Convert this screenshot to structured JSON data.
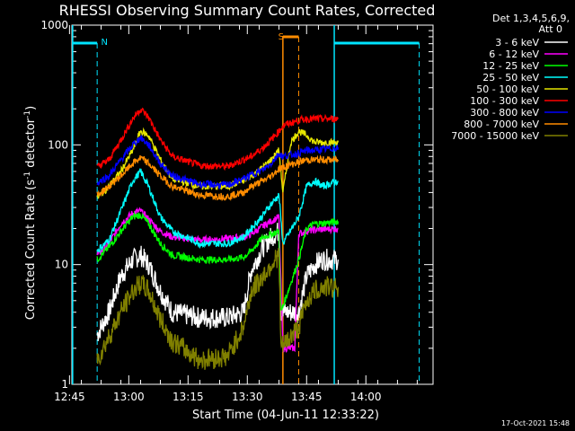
{
  "chart_data": {
    "type": "line",
    "title": "RHESSI Observing Summary Count Rates, Corrected",
    "xlabel": "Start Time (04-Jun-11 12:33:22)",
    "ylabel_main": "Corrected Count Rate (s",
    "ylabel_exp1": "-1",
    "ylabel_mid": " detector",
    "ylabel_exp2": "-1",
    "ylabel_end": ")",
    "y_scale": "log",
    "ylim": [
      1,
      1000
    ],
    "xlim_minutes": [
      12.6,
      104.0
    ],
    "x_tick_labels": [
      "12:45",
      "13:00",
      "13:15",
      "13:30",
      "13:45",
      "14:00"
    ],
    "x_tick_minutes": [
      12,
      27,
      42,
      57,
      72,
      87
    ],
    "y_tick_labels": [
      "1",
      "10",
      "100",
      "1000"
    ],
    "y_tick_values": [
      1,
      10,
      100,
      1000
    ],
    "legend_header1": "Det 1,3,4,5,6,9,",
    "legend_header2": "Att 0",
    "legend_placement": "top-right",
    "timestamp": "17-Oct-2021 15:48",
    "flags": [
      {
        "label": "N",
        "color": "#00e5ff",
        "start": 19.0,
        "end": 71.0,
        "style": "dashed"
      },
      {
        "label": "S",
        "color": "#ff8c00",
        "start": 66.0,
        "end": 70.0,
        "style": "dashed"
      }
    ],
    "series": [
      {
        "name": "3 - 6 keV",
        "color": "#ffffff",
        "points": [
          [
            19,
            2.6
          ],
          [
            22,
            4
          ],
          [
            25,
            8
          ],
          [
            28,
            11
          ],
          [
            30,
            12
          ],
          [
            32,
            10
          ],
          [
            35,
            6
          ],
          [
            38,
            4
          ],
          [
            45,
            3.6
          ],
          [
            52,
            3.6
          ],
          [
            56,
            4
          ],
          [
            58,
            9
          ],
          [
            61,
            14
          ],
          [
            63,
            17
          ],
          [
            65,
            19
          ],
          [
            65.5,
            4
          ],
          [
            70,
            4
          ],
          [
            72,
            8
          ],
          [
            74,
            10
          ],
          [
            76,
            11
          ],
          [
            80,
            11
          ]
        ]
      },
      {
        "name": "6 - 12 keV",
        "color": "#ff00ff",
        "points": [
          [
            19,
            12
          ],
          [
            22,
            15
          ],
          [
            25,
            22
          ],
          [
            28,
            27
          ],
          [
            30,
            28
          ],
          [
            32,
            24
          ],
          [
            35,
            19
          ],
          [
            38,
            17
          ],
          [
            45,
            16
          ],
          [
            52,
            16.5
          ],
          [
            56,
            17
          ],
          [
            58,
            18
          ],
          [
            61,
            21
          ],
          [
            63,
            23
          ],
          [
            65,
            25
          ],
          [
            66,
            2
          ],
          [
            69,
            2
          ],
          [
            70,
            18
          ],
          [
            72,
            19
          ],
          [
            74,
            19.5
          ],
          [
            80,
            20
          ]
        ]
      },
      {
        "name": "12 - 25 keV",
        "color": "#00ff00",
        "points": [
          [
            19,
            11
          ],
          [
            22,
            14
          ],
          [
            25,
            19
          ],
          [
            28,
            25
          ],
          [
            30,
            26
          ],
          [
            32,
            22
          ],
          [
            35,
            15
          ],
          [
            38,
            12
          ],
          [
            45,
            11
          ],
          [
            52,
            11
          ],
          [
            56,
            11.5
          ],
          [
            58,
            13
          ],
          [
            61,
            17
          ],
          [
            63,
            18
          ],
          [
            65,
            19
          ],
          [
            65.5,
            4
          ],
          [
            70,
            11
          ],
          [
            72,
            20
          ],
          [
            74,
            22
          ],
          [
            76,
            22
          ],
          [
            80,
            23
          ]
        ]
      },
      {
        "name": "25 - 50 keV",
        "color": "#00ffff",
        "points": [
          [
            19,
            13
          ],
          [
            22,
            16
          ],
          [
            25,
            28
          ],
          [
            28,
            50
          ],
          [
            30,
            60
          ],
          [
            32,
            45
          ],
          [
            35,
            25
          ],
          [
            38,
            19
          ],
          [
            45,
            15
          ],
          [
            52,
            15
          ],
          [
            56,
            17
          ],
          [
            58,
            20
          ],
          [
            61,
            26
          ],
          [
            63,
            32
          ],
          [
            65,
            38
          ],
          [
            66,
            15
          ],
          [
            70,
            25
          ],
          [
            72,
            45
          ],
          [
            74,
            50
          ],
          [
            76,
            45
          ],
          [
            80,
            50
          ]
        ]
      },
      {
        "name": "50 - 100 keV",
        "color": "#e6e600",
        "points": [
          [
            19,
            36
          ],
          [
            22,
            45
          ],
          [
            25,
            60
          ],
          [
            28,
            90
          ],
          [
            30,
            130
          ],
          [
            32,
            120
          ],
          [
            35,
            75
          ],
          [
            38,
            52
          ],
          [
            45,
            45
          ],
          [
            52,
            45
          ],
          [
            56,
            50
          ],
          [
            58,
            55
          ],
          [
            61,
            65
          ],
          [
            63,
            75
          ],
          [
            65,
            90
          ],
          [
            66,
            40
          ],
          [
            68,
            105
          ],
          [
            70,
            130
          ],
          [
            72,
            120
          ],
          [
            74,
            105
          ],
          [
            80,
            105
          ]
        ]
      },
      {
        "name": "100 - 300 keV",
        "color": "#ff0000",
        "points": [
          [
            19,
            65
          ],
          [
            22,
            75
          ],
          [
            25,
            110
          ],
          [
            28,
            165
          ],
          [
            30,
            200
          ],
          [
            32,
            170
          ],
          [
            35,
            110
          ],
          [
            38,
            80
          ],
          [
            45,
            67
          ],
          [
            52,
            66
          ],
          [
            56,
            75
          ],
          [
            58,
            80
          ],
          [
            61,
            95
          ],
          [
            63,
            110
          ],
          [
            65,
            130
          ],
          [
            66,
            145
          ],
          [
            70,
            160
          ],
          [
            72,
            165
          ],
          [
            74,
            165
          ],
          [
            80,
            165
          ]
        ]
      },
      {
        "name": "300 - 800 keV",
        "color": "#0000ff",
        "points": [
          [
            19,
            48
          ],
          [
            22,
            55
          ],
          [
            25,
            75
          ],
          [
            28,
            100
          ],
          [
            30,
            115
          ],
          [
            32,
            100
          ],
          [
            35,
            70
          ],
          [
            38,
            55
          ],
          [
            45,
            47
          ],
          [
            52,
            46
          ],
          [
            56,
            52
          ],
          [
            58,
            56
          ],
          [
            61,
            62
          ],
          [
            63,
            70
          ],
          [
            65,
            85
          ],
          [
            66,
            80
          ],
          [
            70,
            85
          ],
          [
            72,
            90
          ],
          [
            74,
            90
          ],
          [
            80,
            95
          ]
        ]
      },
      {
        "name": "800 - 7000 keV",
        "color": "#ff8c00",
        "points": [
          [
            19,
            38
          ],
          [
            22,
            45
          ],
          [
            25,
            55
          ],
          [
            28,
            70
          ],
          [
            30,
            78
          ],
          [
            32,
            70
          ],
          [
            35,
            55
          ],
          [
            38,
            45
          ],
          [
            45,
            38
          ],
          [
            52,
            37
          ],
          [
            56,
            40
          ],
          [
            58,
            45
          ],
          [
            61,
            50
          ],
          [
            63,
            55
          ],
          [
            65,
            63
          ],
          [
            66,
            65
          ],
          [
            70,
            72
          ],
          [
            72,
            75
          ],
          [
            74,
            75
          ],
          [
            80,
            75
          ]
        ]
      },
      {
        "name": "7000 - 15000 keV",
        "color": "#808000",
        "points": [
          [
            19,
            1.6
          ],
          [
            22,
            2.5
          ],
          [
            25,
            4
          ],
          [
            28,
            6
          ],
          [
            30,
            7
          ],
          [
            32,
            6
          ],
          [
            35,
            3.5
          ],
          [
            38,
            2.3
          ],
          [
            45,
            1.6
          ],
          [
            52,
            1.7
          ],
          [
            56,
            3
          ],
          [
            58,
            6
          ],
          [
            61,
            8
          ],
          [
            63,
            10
          ],
          [
            65,
            12
          ],
          [
            65.5,
            2
          ],
          [
            70,
            3
          ],
          [
            72,
            5
          ],
          [
            74,
            6
          ],
          [
            76,
            6.5
          ],
          [
            80,
            6.5
          ]
        ]
      }
    ]
  }
}
